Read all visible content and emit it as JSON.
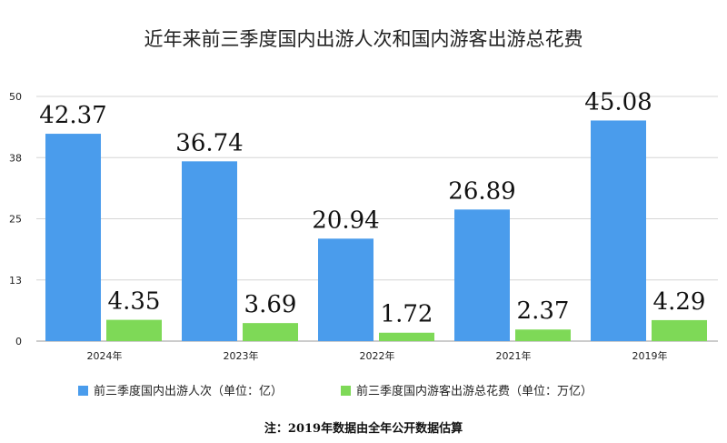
{
  "chart_data": {
    "type": "bar",
    "title": "近年来前三季度国内出游人次和国内游客出游总花费",
    "categories": [
      "2024年",
      "2023年",
      "2022年",
      "2021年",
      "2019年"
    ],
    "series": [
      {
        "name": "前三季度国内出游人次（单位：亿）",
        "values": [
          42.37,
          36.74,
          20.94,
          26.89,
          45.08
        ],
        "labels": [
          "42.37",
          "36.74",
          "20.94",
          "26.89",
          "45.08"
        ],
        "color": "#4a9cec"
      },
      {
        "name": "前三季度国内游客出游总花费（单位：万亿）",
        "values": [
          4.35,
          3.69,
          1.72,
          2.37,
          4.29
        ],
        "labels": [
          "4.35",
          "3.69",
          "1.72",
          "2.37",
          "4.29"
        ],
        "color": "#7ed957"
      }
    ],
    "yticks": [
      0,
      12.5,
      25,
      37.5,
      50
    ],
    "ytick_labels": [
      "0",
      "13",
      "25",
      "38",
      "50"
    ],
    "ylim": [
      0,
      50
    ],
    "grid": true,
    "legend_position": "bottom",
    "note": "注：2019年数据由全年公开数据估算"
  }
}
